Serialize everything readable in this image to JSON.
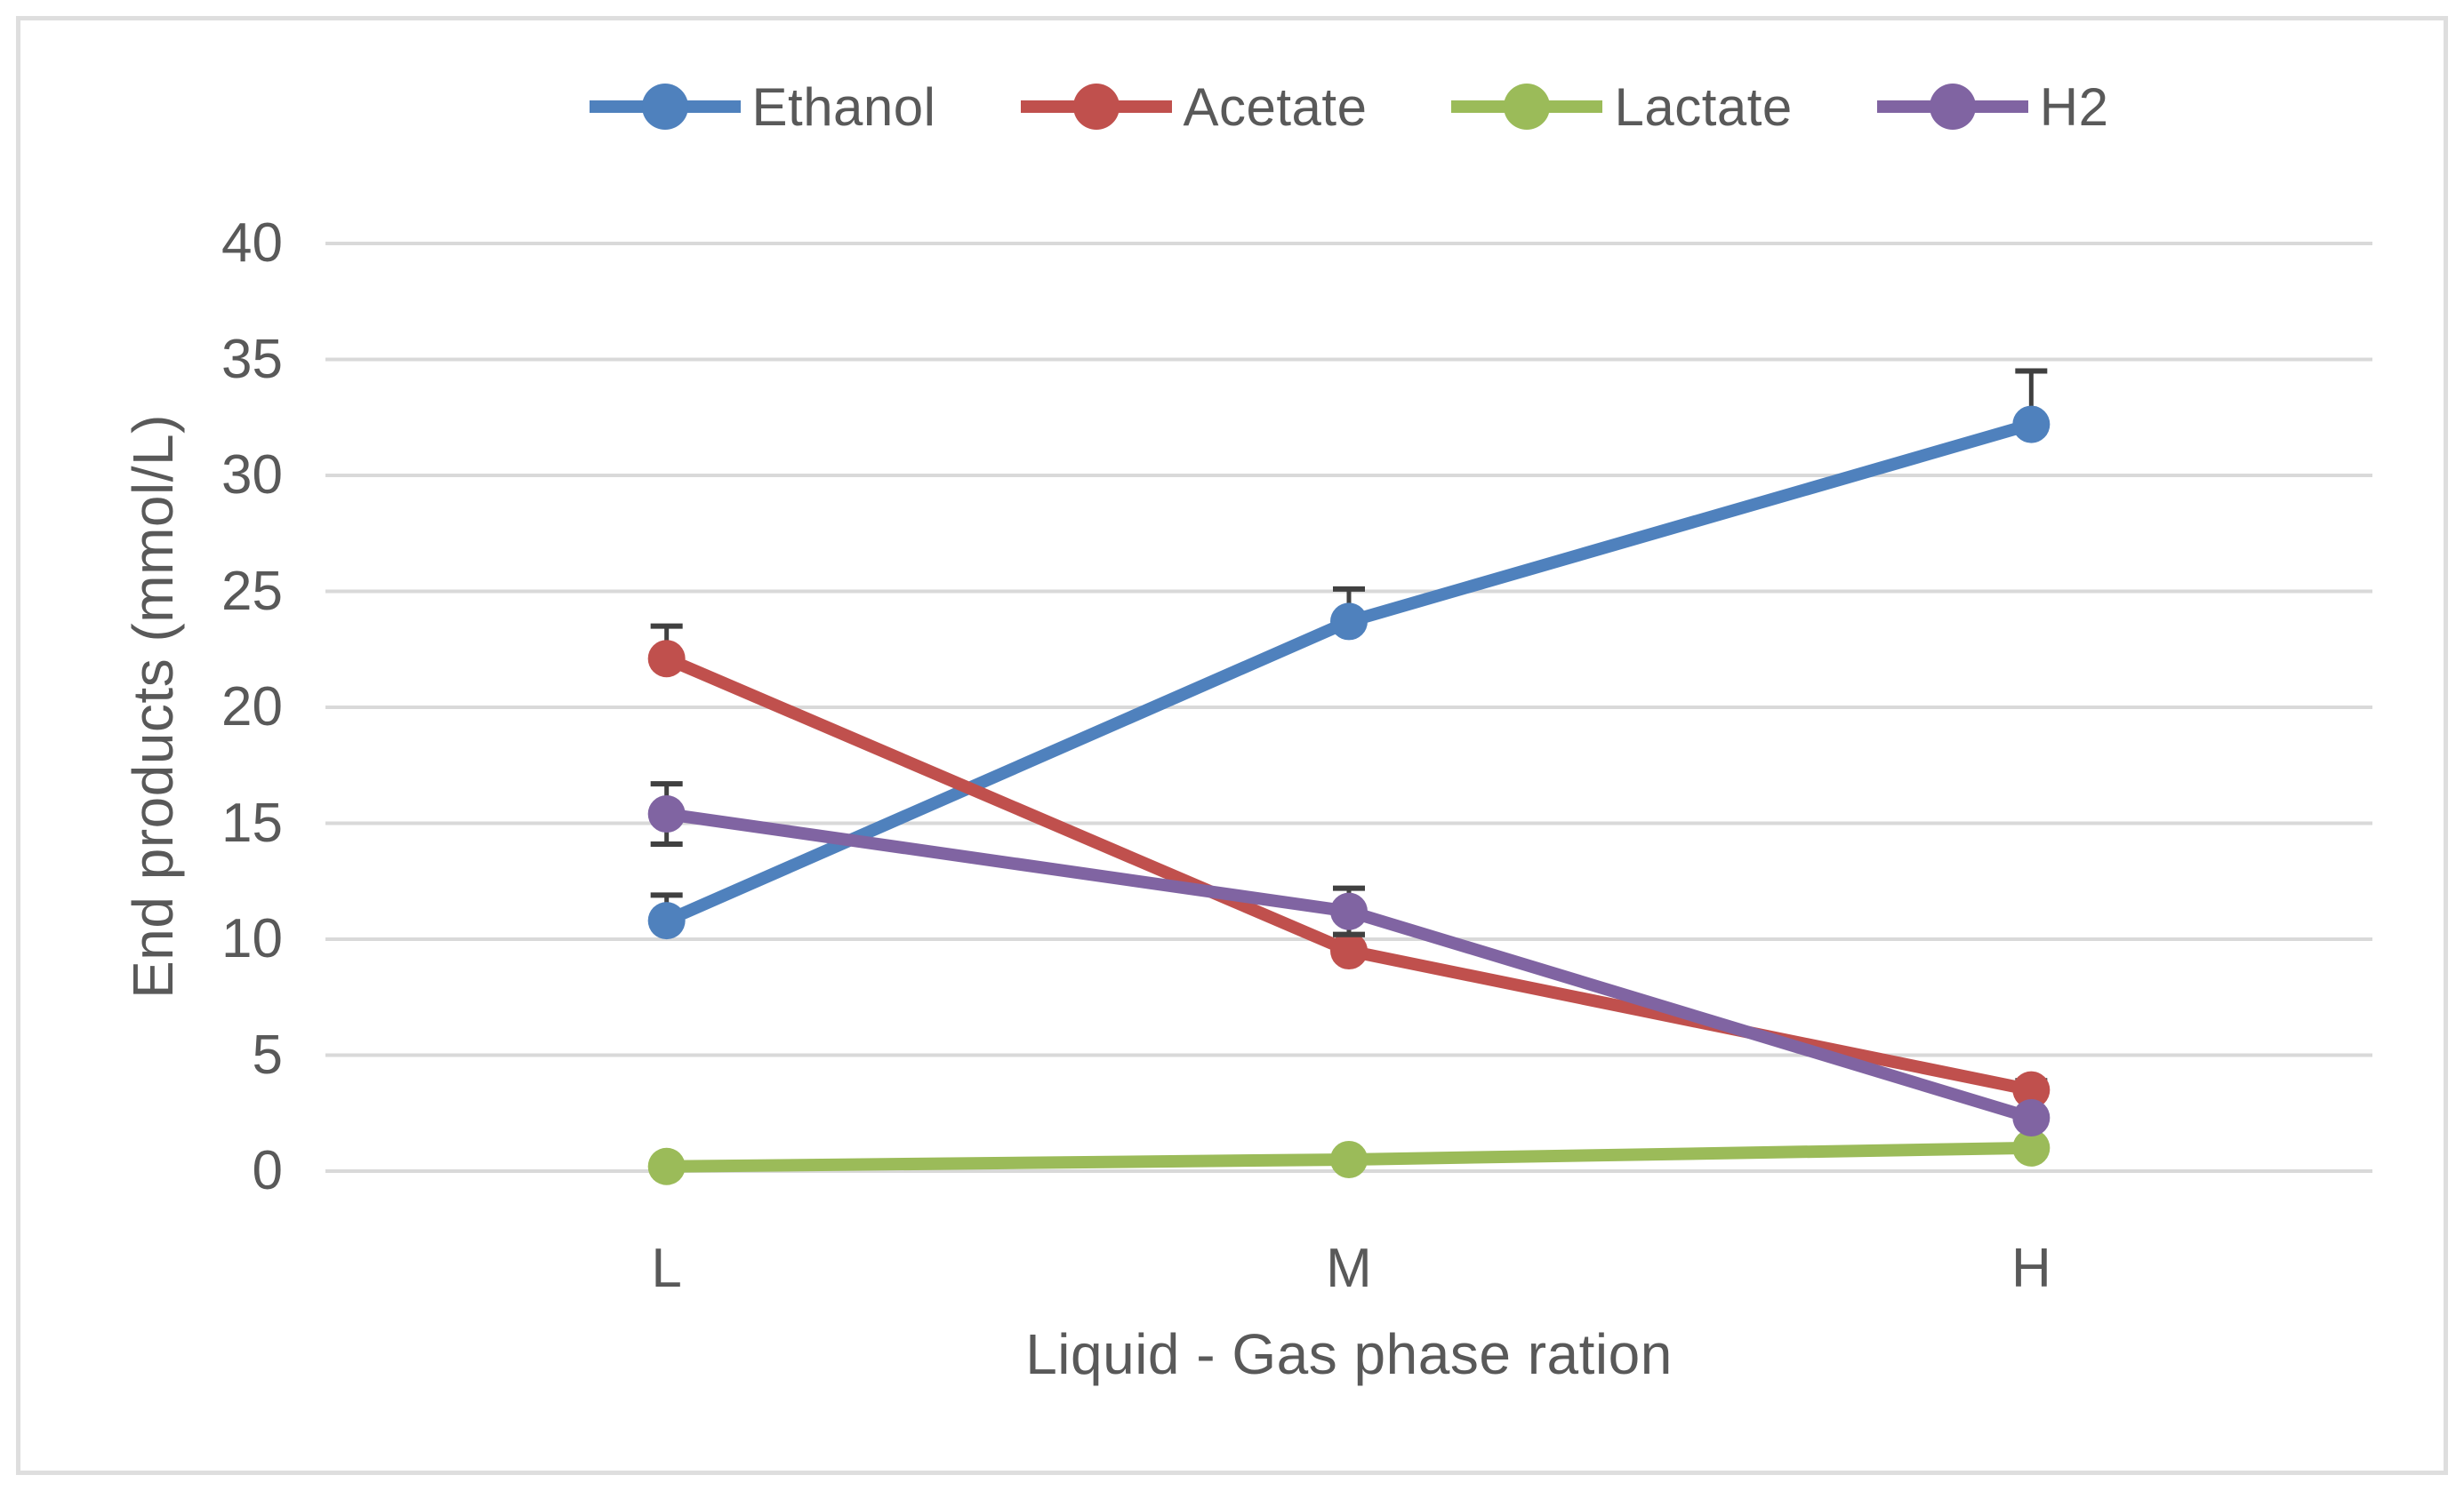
{
  "chart_data": {
    "type": "line",
    "title": "",
    "xlabel": "Liquid - Gas phase ration",
    "ylabel": "End products (mmol/L)",
    "categories": [
      "L",
      "M",
      "H"
    ],
    "series": [
      {
        "name": "Ethanol",
        "color": "#4F81BD",
        "values": [
          10.8,
          23.7,
          32.2
        ],
        "errors": [
          1.1,
          1.4,
          2.3
        ],
        "error_direction": "plus"
      },
      {
        "name": "Acetate",
        "color": "#C0504D",
        "values": [
          22.1,
          9.5,
          3.5
        ],
        "errors": [
          1.4,
          0.7,
          0.4
        ],
        "error_direction": "plus"
      },
      {
        "name": "Lactate",
        "color": "#9BBB59",
        "values": [
          0.2,
          0.5,
          1.0
        ],
        "errors": [
          0.1,
          0.2,
          0.3
        ],
        "error_direction": "both"
      },
      {
        "name": "H2",
        "color": "#8064A2",
        "values": [
          15.4,
          11.2,
          2.3
        ],
        "errors": [
          1.3,
          1.0,
          0.3
        ],
        "error_direction": "both"
      }
    ],
    "ylim": [
      0,
      40
    ],
    "yticks": [
      0,
      5,
      10,
      15,
      20,
      25,
      30,
      35,
      40
    ],
    "grid": "horizontal",
    "legend_position": "top",
    "marker": "circle"
  },
  "styles": {
    "gridline_color": "#D9D9D9",
    "error_bar_color": "#404040",
    "text_color": "#595959",
    "frame_border_color": "#DEDEDE",
    "background": "#FFFFFF"
  }
}
